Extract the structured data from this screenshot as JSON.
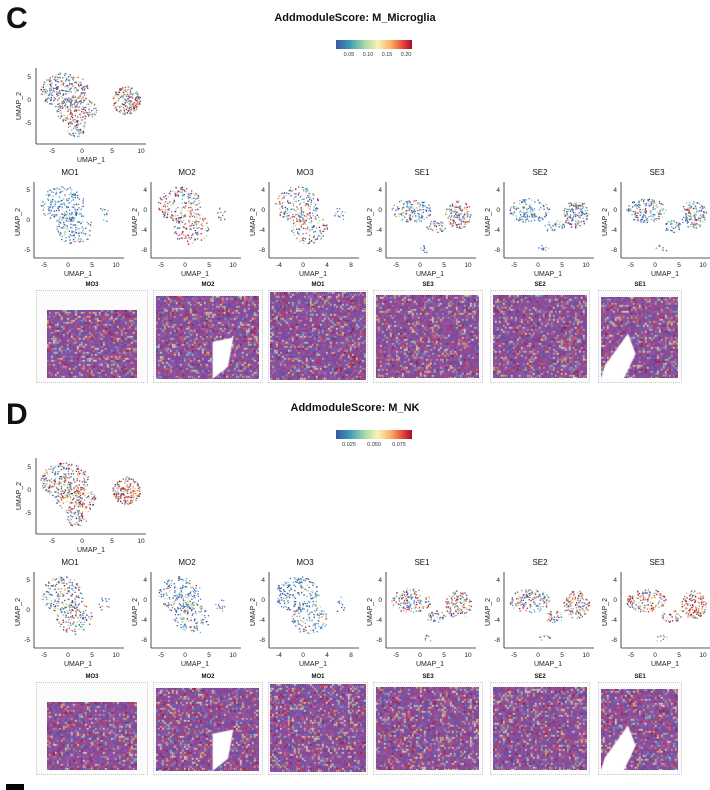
{
  "panels": [
    {
      "letter": "C",
      "title": "AddmoduleScore: M_Microglia",
      "colorbar_ticks": [
        "0.05",
        "0.10",
        "0.15",
        "0.20"
      ],
      "overview": {
        "xlabel": "UMAP_1",
        "ylabel": "UMAP_2",
        "xticks": [
          "-5",
          "0",
          "5",
          "10"
        ],
        "yticks": [
          "5",
          "0",
          "-5"
        ]
      },
      "samples": [
        {
          "name": "MO1",
          "xticks": [
            "-5",
            "0",
            "5",
            "10"
          ],
          "yticks": [
            "5",
            "0",
            "-5"
          ]
        },
        {
          "name": "MO2",
          "xticks": [
            "-5",
            "0",
            "5",
            "10"
          ],
          "yticks": [
            "4",
            "0",
            "-4",
            "-8"
          ]
        },
        {
          "name": "MO3",
          "xticks": [
            "-4",
            "0",
            "4",
            "8"
          ],
          "yticks": [
            "4",
            "0",
            "-4",
            "-8"
          ]
        },
        {
          "name": "SE1",
          "xticks": [
            "-5",
            "0",
            "5",
            "10"
          ],
          "yticks": [
            "4",
            "0",
            "-4",
            "-8"
          ]
        },
        {
          "name": "SE2",
          "xticks": [
            "-5",
            "0",
            "5",
            "10"
          ],
          "yticks": [
            "4",
            "0",
            "-4",
            "-8"
          ]
        },
        {
          "name": "SE3",
          "xticks": [
            "-5",
            "0",
            "5",
            "10"
          ],
          "yticks": [
            "4",
            "0",
            "-4",
            "-8"
          ]
        }
      ],
      "tissues": [
        "MO3",
        "MO2",
        "MO1",
        "SE3",
        "SE2",
        "SE1"
      ]
    },
    {
      "letter": "D",
      "title": "AddmoduleScore: M_NK",
      "colorbar_ticks": [
        "0.025",
        "0.050",
        "0.075"
      ],
      "overview": {
        "xlabel": "UMAP_1",
        "ylabel": "UMAP_2",
        "xticks": [
          "-5",
          "0",
          "5",
          "10"
        ],
        "yticks": [
          "5",
          "0",
          "-5"
        ]
      },
      "samples": [
        {
          "name": "MO1",
          "xticks": [
            "-5",
            "0",
            "5",
            "10"
          ],
          "yticks": [
            "5",
            "0",
            "-5"
          ]
        },
        {
          "name": "MO2",
          "xticks": [
            "-5",
            "0",
            "5",
            "10"
          ],
          "yticks": [
            "4",
            "0",
            "-4",
            "-8"
          ]
        },
        {
          "name": "MO3",
          "xticks": [
            "-4",
            "0",
            "4",
            "8"
          ],
          "yticks": [
            "4",
            "0",
            "-4",
            "-8"
          ]
        },
        {
          "name": "SE1",
          "xticks": [
            "-5",
            "0",
            "5",
            "10"
          ],
          "yticks": [
            "4",
            "0",
            "-4",
            "-8"
          ]
        },
        {
          "name": "SE2",
          "xticks": [
            "-5",
            "0",
            "5",
            "10"
          ],
          "yticks": [
            "4",
            "0",
            "-4",
            "-8"
          ]
        },
        {
          "name": "SE3",
          "xticks": [
            "-5",
            "0",
            "5",
            "10"
          ],
          "yticks": [
            "4",
            "0",
            "-4",
            "-8"
          ]
        }
      ],
      "tissues": [
        "MO3",
        "MO2",
        "MO1",
        "SE3",
        "SE2",
        "SE1"
      ]
    }
  ],
  "colors": {
    "low": "#3b55a6",
    "mid": "#f7f3b6",
    "high": "#a50f2d",
    "tissue_base": "#8a4f9e"
  }
}
